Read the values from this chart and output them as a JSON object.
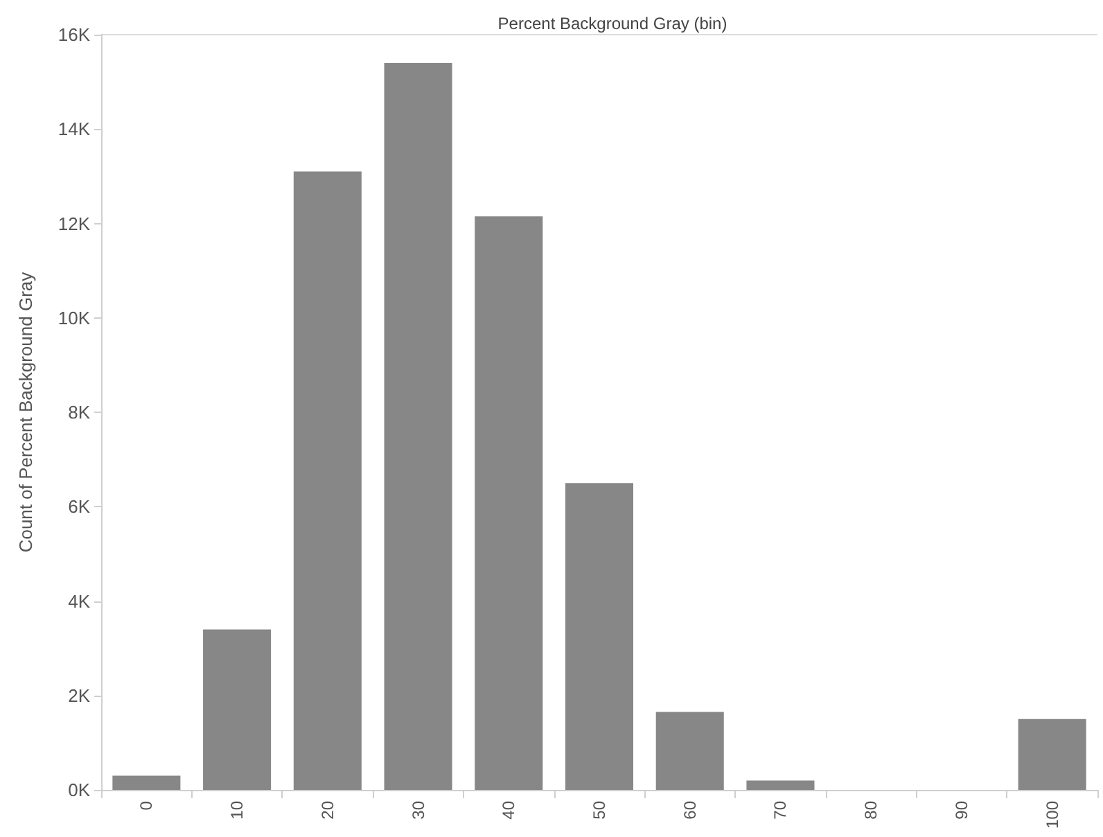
{
  "chart_data": {
    "type": "bar",
    "xlabel": "Percent Background Gray (bin)",
    "ylabel": "Count of Percent Background Gray",
    "categories": [
      "0",
      "10",
      "20",
      "30",
      "40",
      "50",
      "60",
      "70",
      "80",
      "90",
      "100"
    ],
    "values": [
      300,
      3400,
      13100,
      15400,
      12150,
      6500,
      1650,
      200,
      0,
      0,
      1500
    ],
    "color": "#878787",
    "ylim": [
      0,
      16000
    ],
    "yticks": [
      {
        "value": 0,
        "label": "0K"
      },
      {
        "value": 2000,
        "label": "2K"
      },
      {
        "value": 4000,
        "label": "4K"
      },
      {
        "value": 6000,
        "label": "6K"
      },
      {
        "value": 8000,
        "label": "8K"
      },
      {
        "value": 10000,
        "label": "10K"
      },
      {
        "value": 12000,
        "label": "12K"
      },
      {
        "value": 14000,
        "label": "14K"
      },
      {
        "value": 16000,
        "label": "16K"
      }
    ],
    "grid": false
  }
}
